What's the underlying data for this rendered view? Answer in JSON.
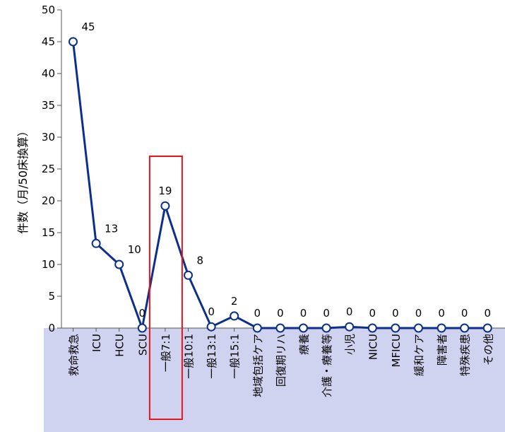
{
  "chart_data": {
    "type": "line",
    "ylabel": "件数（月/50床換算）",
    "ylim": [
      0,
      50
    ],
    "yticks": [
      0,
      5,
      10,
      15,
      20,
      25,
      30,
      35,
      40,
      45,
      50
    ],
    "categories": [
      "救命救急",
      "ICU",
      "HCU",
      "SCU",
      "一般7:1",
      "一般10:1",
      "一般13:1",
      "一般15:1",
      "地域包括ケア",
      "回復期リハ",
      "療養",
      "介護・療養等",
      "小児",
      "NICU",
      "MFICU",
      "緩和ケア",
      "障害者",
      "特殊疾患",
      "その他"
    ],
    "series": [
      {
        "values": [
          45,
          13.3,
          10,
          0,
          19.2,
          8.3,
          0.2,
          1.9,
          0,
          0,
          0,
          0,
          0.2,
          0,
          0,
          0,
          0,
          0,
          0
        ],
        "data_labels": [
          "45",
          "13",
          "10",
          "0",
          "19",
          "8",
          "0",
          "2",
          "0",
          "0",
          "0",
          "0",
          "0",
          "0",
          "0",
          "0",
          "0",
          "0",
          "0"
        ]
      }
    ],
    "highlight_category": "一般7:1",
    "grid": false,
    "colors": {
      "line": "#0d2f8c",
      "marker_fill": "#ffffff",
      "category_band": "#d0d3f0",
      "highlight_box": "#e8141c"
    }
  }
}
